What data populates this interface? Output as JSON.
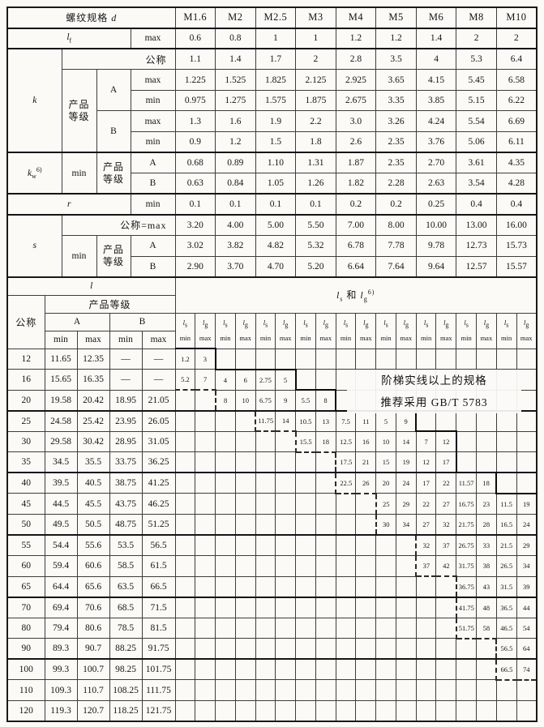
{
  "labels": {
    "spec": "螺纹规格",
    "d": "d",
    "l": "l",
    "f_sub": "f",
    "w_sub": "w",
    "s_sub": "s",
    "g_sub": "g",
    "max": "max",
    "min": "min",
    "nominal": "公称",
    "nominal_eq_max": "公称=max",
    "grade": "产品等级",
    "A": "A",
    "B": "B",
    "k": "k",
    "r": "r",
    "s": "s",
    "and": "和",
    "sup6": "6)",
    "dash": "—"
  },
  "upper": {
    "sizes": [
      "M1.6",
      "M2",
      "M2.5",
      "M3",
      "M4",
      "M5",
      "M6",
      "M8",
      "M10"
    ],
    "rows": [
      {
        "name": "lf-max",
        "values": [
          "0.6",
          "0.8",
          "1",
          "1",
          "1.2",
          "1.2",
          "1.4",
          "2",
          "2"
        ]
      },
      {
        "name": "k-nominal",
        "values": [
          "1.1",
          "1.4",
          "1.7",
          "2",
          "2.8",
          "3.5",
          "4",
          "5.3",
          "6.4"
        ]
      },
      {
        "name": "k-A-max",
        "values": [
          "1.225",
          "1.525",
          "1.825",
          "2.125",
          "2.925",
          "3.65",
          "4.15",
          "5.45",
          "6.58"
        ]
      },
      {
        "name": "k-A-min",
        "values": [
          "0.975",
          "1.275",
          "1.575",
          "1.875",
          "2.675",
          "3.35",
          "3.85",
          "5.15",
          "6.22"
        ]
      },
      {
        "name": "k-B-max",
        "values": [
          "1.3",
          "1.6",
          "1.9",
          "2.2",
          "3.0",
          "3.26",
          "4.24",
          "5.54",
          "6.69"
        ]
      },
      {
        "name": "k-B-min",
        "values": [
          "0.9",
          "1.2",
          "1.5",
          "1.8",
          "2.6",
          "2.35",
          "3.76",
          "5.06",
          "6.11"
        ]
      },
      {
        "name": "kw-A-min",
        "values": [
          "0.68",
          "0.89",
          "1.10",
          "1.31",
          "1.87",
          "2.35",
          "2.70",
          "3.61",
          "4.35"
        ]
      },
      {
        "name": "kw-B-min",
        "values": [
          "0.63",
          "0.84",
          "1.05",
          "1.26",
          "1.82",
          "2.28",
          "2.63",
          "3.54",
          "4.28"
        ]
      },
      {
        "name": "r-min",
        "values": [
          "0.1",
          "0.1",
          "0.1",
          "0.1",
          "0.2",
          "0.2",
          "0.25",
          "0.4",
          "0.4"
        ]
      },
      {
        "name": "s-nominal",
        "values": [
          "3.20",
          "4.00",
          "5.00",
          "5.50",
          "7.00",
          "8.00",
          "10.00",
          "13.00",
          "16.00"
        ]
      },
      {
        "name": "s-A-min",
        "values": [
          "3.02",
          "3.82",
          "4.82",
          "5.32",
          "6.78",
          "7.78",
          "9.78",
          "12.73",
          "15.73"
        ]
      },
      {
        "name": "s-B-min",
        "values": [
          "2.90",
          "3.70",
          "4.70",
          "5.20",
          "6.64",
          "7.64",
          "9.64",
          "12.57",
          "15.57"
        ]
      }
    ]
  },
  "lower": {
    "rows": [
      {
        "l": "12",
        "a_min": "11.65",
        "a_max": "12.35",
        "b_min": "—",
        "b_max": "—",
        "pairs": [
          "1.2",
          "3",
          "",
          "",
          "",
          "",
          "",
          "",
          "",
          "",
          "",
          "",
          "",
          "",
          "",
          "",
          "",
          ""
        ]
      },
      {
        "l": "16",
        "a_min": "15.65",
        "a_max": "16.35",
        "b_min": "—",
        "b_max": "—",
        "pairs": [
          "5.2",
          "7",
          "4",
          "6",
          "2.75",
          "5",
          "",
          "",
          "",
          "",
          "",
          "",
          "",
          "",
          "",
          "",
          "",
          ""
        ]
      },
      {
        "l": "20",
        "a_min": "19.58",
        "a_max": "20.42",
        "b_min": "18.95",
        "b_max": "21.05",
        "pairs": [
          "",
          "",
          "8",
          "10",
          "6.75",
          "9",
          "5.5",
          "8",
          "",
          "",
          "",
          "",
          "",
          "",
          "",
          "",
          "",
          ""
        ]
      },
      {
        "l": "25",
        "a_min": "24.58",
        "a_max": "25.42",
        "b_min": "23.95",
        "b_max": "26.05",
        "pairs": [
          "",
          "",
          "",
          "",
          "11.75",
          "14",
          "10.5",
          "13",
          "7.5",
          "11",
          "5",
          "9",
          "",
          "",
          "",
          "",
          "",
          ""
        ]
      },
      {
        "l": "30",
        "a_min": "29.58",
        "a_max": "30.42",
        "b_min": "28.95",
        "b_max": "31.05",
        "pairs": [
          "",
          "",
          "",
          "",
          "",
          "",
          "15.5",
          "18",
          "12.5",
          "16",
          "10",
          "14",
          "7",
          "12",
          "",
          "",
          "",
          ""
        ]
      },
      {
        "l": "35",
        "a_min": "34.5",
        "a_max": "35.5",
        "b_min": "33.75",
        "b_max": "36.25",
        "pairs": [
          "",
          "",
          "",
          "",
          "",
          "",
          "",
          "",
          "17.5",
          "21",
          "15",
          "19",
          "12",
          "17",
          "",
          "",
          "",
          ""
        ]
      },
      {
        "l": "40",
        "a_min": "39.5",
        "a_max": "40.5",
        "b_min": "38.75",
        "b_max": "41.25",
        "pairs": [
          "",
          "",
          "",
          "",
          "",
          "",
          "",
          "",
          "22.5",
          "26",
          "20",
          "24",
          "17",
          "22",
          "11.57",
          "18",
          "",
          ""
        ]
      },
      {
        "l": "45",
        "a_min": "44.5",
        "a_max": "45.5",
        "b_min": "43.75",
        "b_max": "46.25",
        "pairs": [
          "",
          "",
          "",
          "",
          "",
          "",
          "",
          "",
          "",
          "",
          "25",
          "29",
          "22",
          "27",
          "16.75",
          "23",
          "11.5",
          "19"
        ]
      },
      {
        "l": "50",
        "a_min": "49.5",
        "a_max": "50.5",
        "b_min": "48.75",
        "b_max": "51.25",
        "pairs": [
          "",
          "",
          "",
          "",
          "",
          "",
          "",
          "",
          "",
          "",
          "30",
          "34",
          "27",
          "32",
          "21.75",
          "28",
          "16.5",
          "24"
        ]
      },
      {
        "l": "55",
        "a_min": "54.4",
        "a_max": "55.6",
        "b_min": "53.5",
        "b_max": "56.5",
        "pairs": [
          "",
          "",
          "",
          "",
          "",
          "",
          "",
          "",
          "",
          "",
          "",
          "",
          "32",
          "37",
          "26.75",
          "33",
          "21.5",
          "29"
        ]
      },
      {
        "l": "60",
        "a_min": "59.4",
        "a_max": "60.6",
        "b_min": "58.5",
        "b_max": "61.5",
        "pairs": [
          "",
          "",
          "",
          "",
          "",
          "",
          "",
          "",
          "",
          "",
          "",
          "",
          "37",
          "42",
          "31.75",
          "38",
          "26.5",
          "34"
        ]
      },
      {
        "l": "65",
        "a_min": "64.4",
        "a_max": "65.6",
        "b_min": "63.5",
        "b_max": "66.5",
        "pairs": [
          "",
          "",
          "",
          "",
          "",
          "",
          "",
          "",
          "",
          "",
          "",
          "",
          "",
          "",
          "36.75",
          "43",
          "31.5",
          "39"
        ]
      },
      {
        "l": "70",
        "a_min": "69.4",
        "a_max": "70.6",
        "b_min": "68.5",
        "b_max": "71.5",
        "pairs": [
          "",
          "",
          "",
          "",
          "",
          "",
          "",
          "",
          "",
          "",
          "",
          "",
          "",
          "",
          "41.75",
          "48",
          "36.5",
          "44"
        ]
      },
      {
        "l": "80",
        "a_min": "79.4",
        "a_max": "80.6",
        "b_min": "78.5",
        "b_max": "81.5",
        "pairs": [
          "",
          "",
          "",
          "",
          "",
          "",
          "",
          "",
          "",
          "",
          "",
          "",
          "",
          "",
          "51.75",
          "58",
          "46.5",
          "54"
        ]
      },
      {
        "l": "90",
        "a_min": "89.3",
        "a_max": "90.7",
        "b_min": "88.25",
        "b_max": "91.75",
        "pairs": [
          "",
          "",
          "",
          "",
          "",
          "",
          "",
          "",
          "",
          "",
          "",
          "",
          "",
          "",
          "",
          "",
          "56.5",
          "64"
        ]
      },
      {
        "l": "100",
        "a_min": "99.3",
        "a_max": "100.7",
        "b_min": "98.25",
        "b_max": "101.75",
        "pairs": [
          "",
          "",
          "",
          "",
          "",
          "",
          "",
          "",
          "",
          "",
          "",
          "",
          "",
          "",
          "",
          "",
          "66.5",
          "74"
        ]
      },
      {
        "l": "110",
        "a_min": "109.3",
        "a_max": "110.7",
        "b_min": "108.25",
        "b_max": "111.75",
        "pairs": [
          "",
          "",
          "",
          "",
          "",
          "",
          "",
          "",
          "",
          "",
          "",
          "",
          "",
          "",
          "",
          "",
          "",
          ""
        ]
      },
      {
        "l": "120",
        "a_min": "119.3",
        "a_max": "120.7",
        "b_min": "118.25",
        "b_max": "121.75",
        "pairs": [
          "",
          "",
          "",
          "",
          "",
          "",
          "",
          "",
          "",
          "",
          "",
          "",
          "",
          "",
          "",
          "",
          "",
          ""
        ]
      }
    ]
  },
  "note": {
    "line1": "阶梯实线以上的规格",
    "line2": "推荐采用 GB/T 5783"
  }
}
